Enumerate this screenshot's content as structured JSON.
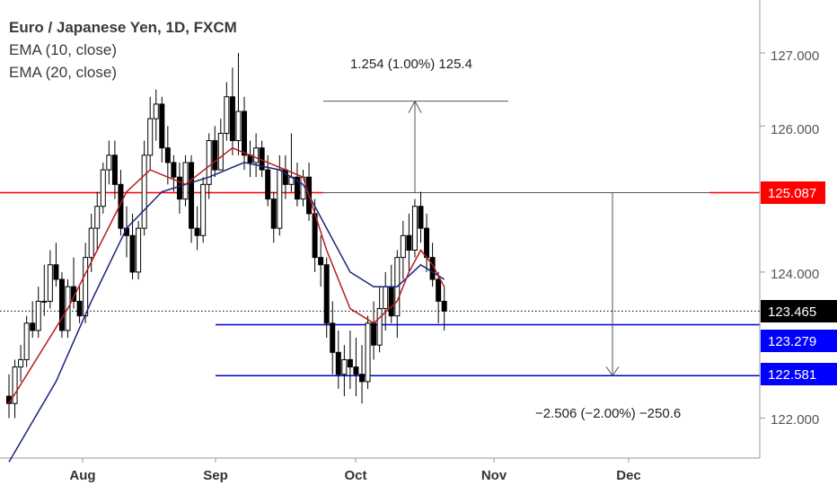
{
  "legend": {
    "title": "Euro / Japanese Yen, 1D, FXCM",
    "ema10": "EMA (10, close)",
    "ema20": "EMA (20, close)"
  },
  "annotations": {
    "up": "1.254 (1.00%) 125.4",
    "down": "−2.506 (−2.00%) −250.6"
  },
  "chart_data": {
    "type": "candlestick",
    "title": "Euro / Japanese Yen, 1D, FXCM",
    "x_ticks": [
      "Aug",
      "Sep",
      "Oct",
      "Nov",
      "Dec"
    ],
    "y_ticks": [
      "122.000",
      "124.000",
      "126.000",
      "127.000"
    ],
    "ylim": [
      121.3,
      127.5
    ],
    "grid": false,
    "colors": {
      "up": "#ffffff",
      "down": "#000000",
      "wick": "#000000",
      "ema10": "#b71c1c",
      "ema20": "#1a237e",
      "resistance": "#ff0000",
      "support": "#0000cc",
      "measure": "#555555"
    },
    "price_labels": [
      {
        "label": "125.087",
        "value": 125.087,
        "bg": "#ff0000"
      },
      {
        "label": "123.465",
        "value": 123.465,
        "bg": "#000000"
      },
      {
        "label": "123.279",
        "value": 123.279,
        "bg": "#0000ff"
      },
      {
        "label": "122.581",
        "value": 122.581,
        "bg": "#0000ff"
      }
    ],
    "horizontal_lines": [
      {
        "name": "resistance",
        "value": 125.087
      },
      {
        "name": "support-1",
        "value": 123.279
      },
      {
        "name": "support-2",
        "value": 122.581
      },
      {
        "name": "last-price",
        "value": 123.465
      }
    ],
    "measures": [
      {
        "name": "up",
        "from": 125.087,
        "to": 126.341
      },
      {
        "name": "down",
        "from": 125.087,
        "to": 122.581
      }
    ],
    "candles": [
      [
        122.3,
        122.6,
        122.0,
        122.2
      ],
      [
        122.2,
        122.8,
        122.0,
        122.7
      ],
      [
        122.7,
        123.0,
        122.5,
        122.8
      ],
      [
        122.8,
        123.4,
        122.7,
        123.3
      ],
      [
        123.3,
        123.6,
        123.1,
        123.2
      ],
      [
        123.2,
        123.8,
        123.1,
        123.6
      ],
      [
        123.6,
        124.1,
        123.4,
        123.6
      ],
      [
        123.6,
        124.3,
        123.5,
        124.1
      ],
      [
        124.1,
        124.4,
        123.8,
        123.9
      ],
      [
        123.9,
        124.0,
        123.1,
        123.2
      ],
      [
        123.2,
        123.9,
        123.1,
        123.8
      ],
      [
        123.8,
        124.2,
        123.5,
        123.6
      ],
      [
        123.6,
        123.8,
        123.3,
        123.4
      ],
      [
        123.4,
        124.4,
        123.3,
        124.2
      ],
      [
        124.2,
        124.8,
        124.0,
        124.6
      ],
      [
        124.6,
        125.1,
        124.3,
        124.9
      ],
      [
        124.9,
        125.5,
        124.8,
        125.4
      ],
      [
        125.4,
        125.8,
        125.2,
        125.6
      ],
      [
        125.6,
        125.8,
        125.0,
        125.2
      ],
      [
        125.2,
        125.4,
        124.5,
        124.6
      ],
      [
        124.6,
        124.9,
        124.2,
        124.5
      ],
      [
        124.5,
        124.8,
        123.9,
        124.0
      ],
      [
        124.0,
        124.7,
        123.9,
        124.6
      ],
      [
        124.6,
        125.8,
        124.5,
        125.6
      ],
      [
        125.6,
        126.4,
        125.4,
        126.1
      ],
      [
        126.1,
        126.5,
        125.8,
        126.3
      ],
      [
        126.3,
        126.4,
        125.5,
        125.7
      ],
      [
        125.7,
        126.0,
        125.2,
        125.5
      ],
      [
        125.5,
        125.6,
        125.1,
        125.3
      ],
      [
        125.3,
        125.5,
        124.8,
        125.0
      ],
      [
        125.0,
        125.6,
        124.9,
        125.5
      ],
      [
        125.5,
        125.6,
        124.4,
        124.6
      ],
      [
        124.6,
        124.9,
        124.3,
        124.5
      ],
      [
        124.5,
        125.3,
        124.4,
        125.2
      ],
      [
        125.2,
        125.9,
        125.0,
        125.8
      ],
      [
        125.8,
        126.0,
        125.3,
        125.4
      ],
      [
        125.4,
        126.1,
        125.4,
        125.9
      ],
      [
        125.9,
        126.6,
        125.8,
        126.4
      ],
      [
        126.4,
        126.8,
        125.6,
        125.8
      ],
      [
        125.8,
        127.0,
        125.6,
        126.2
      ],
      [
        126.2,
        126.4,
        125.4,
        125.6
      ],
      [
        125.6,
        125.8,
        125.3,
        125.5
      ],
      [
        125.5,
        125.9,
        125.3,
        125.7
      ],
      [
        125.7,
        125.8,
        125.3,
        125.4
      ],
      [
        125.4,
        125.6,
        124.9,
        125.0
      ],
      [
        125.0,
        125.1,
        124.4,
        124.6
      ],
      [
        124.6,
        125.6,
        124.5,
        125.4
      ],
      [
        125.4,
        125.6,
        125.0,
        125.2
      ],
      [
        125.2,
        125.9,
        125.1,
        125.3
      ],
      [
        125.3,
        125.5,
        124.9,
        125.0
      ],
      [
        125.0,
        125.4,
        124.9,
        125.3
      ],
      [
        125.3,
        125.5,
        124.7,
        124.8
      ],
      [
        124.8,
        125.0,
        124.0,
        124.2
      ],
      [
        124.2,
        124.5,
        123.8,
        124.1
      ],
      [
        124.1,
        124.2,
        123.1,
        123.3
      ],
      [
        123.3,
        123.6,
        122.6,
        122.9
      ],
      [
        122.9,
        123.2,
        122.4,
        122.6
      ],
      [
        122.6,
        123.0,
        122.3,
        122.8
      ],
      [
        122.8,
        123.2,
        122.4,
        122.7
      ],
      [
        122.7,
        123.1,
        122.3,
        122.6
      ],
      [
        122.6,
        123.0,
        122.2,
        122.5
      ],
      [
        122.5,
        123.4,
        122.4,
        123.3
      ],
      [
        123.3,
        123.6,
        122.8,
        123.0
      ],
      [
        123.0,
        123.8,
        122.9,
        123.5
      ],
      [
        123.5,
        124.0,
        123.2,
        123.8
      ],
      [
        123.8,
        124.1,
        123.3,
        123.4
      ],
      [
        123.4,
        124.3,
        123.1,
        124.2
      ],
      [
        124.2,
        124.7,
        123.9,
        124.5
      ],
      [
        124.5,
        124.8,
        124.0,
        124.3
      ],
      [
        124.3,
        125.0,
        124.2,
        124.9
      ],
      [
        124.9,
        125.1,
        124.4,
        124.6
      ],
      [
        124.6,
        124.8,
        124.0,
        124.2
      ],
      [
        124.2,
        124.4,
        123.8,
        123.9
      ],
      [
        123.9,
        124.0,
        123.3,
        123.6
      ],
      [
        123.6,
        123.8,
        123.2,
        123.465
      ]
    ],
    "ema10": [
      [
        0,
        122.2
      ],
      [
        10,
        123.5
      ],
      [
        20,
        125.1
      ],
      [
        24,
        125.4
      ],
      [
        30,
        125.2
      ],
      [
        38,
        125.7
      ],
      [
        44,
        125.5
      ],
      [
        50,
        125.3
      ],
      [
        54,
        124.3
      ],
      [
        58,
        123.5
      ],
      [
        62,
        123.3
      ],
      [
        66,
        123.6
      ],
      [
        68,
        124.0
      ],
      [
        70,
        124.3
      ],
      [
        72,
        124.1
      ],
      [
        74,
        123.8
      ]
    ],
    "ema20": [
      [
        0,
        121.4
      ],
      [
        8,
        122.5
      ],
      [
        14,
        123.6
      ],
      [
        20,
        124.6
      ],
      [
        26,
        125.1
      ],
      [
        34,
        125.3
      ],
      [
        40,
        125.5
      ],
      [
        46,
        125.4
      ],
      [
        50,
        125.2
      ],
      [
        54,
        124.6
      ],
      [
        58,
        124.0
      ],
      [
        62,
        123.8
      ],
      [
        66,
        123.8
      ],
      [
        70,
        124.1
      ],
      [
        74,
        123.9
      ]
    ]
  }
}
